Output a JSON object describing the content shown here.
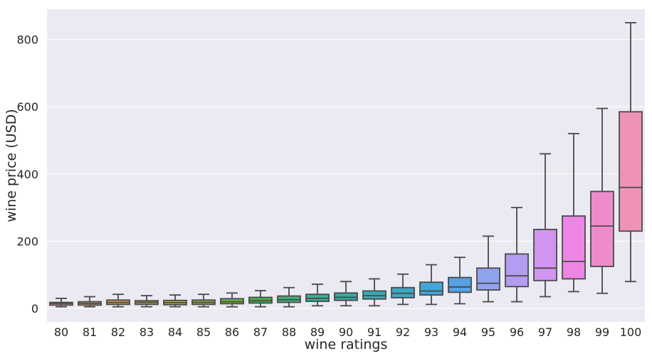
{
  "chart_data": {
    "type": "box",
    "xlabel": "wine ratings",
    "ylabel": "wine price (USD)",
    "ylim": [
      -40,
      890
    ],
    "yticks": [
      0,
      200,
      400,
      600,
      800
    ],
    "grid": true,
    "legend": "none",
    "categories": [
      "80",
      "81",
      "82",
      "83",
      "84",
      "85",
      "86",
      "87",
      "88",
      "89",
      "90",
      "91",
      "92",
      "93",
      "94",
      "95",
      "96",
      "97",
      "98",
      "99",
      "100"
    ],
    "boxes": [
      {
        "category": "80",
        "whislo": 5,
        "q1": 10,
        "med": 15,
        "q3": 18,
        "whishi": 30,
        "color": "#f08f8a"
      },
      {
        "category": "81",
        "whislo": 5,
        "q1": 10,
        "med": 15,
        "q3": 20,
        "whishi": 35,
        "color": "#e79a6f"
      },
      {
        "category": "82",
        "whislo": 5,
        "q1": 12,
        "med": 18,
        "q3": 25,
        "whishi": 42,
        "color": "#d9a34f"
      },
      {
        "category": "83",
        "whislo": 5,
        "q1": 12,
        "med": 18,
        "q3": 23,
        "whishi": 38,
        "color": "#c5a93d"
      },
      {
        "category": "84",
        "whislo": 5,
        "q1": 11,
        "med": 17,
        "q3": 24,
        "whishi": 40,
        "color": "#b2ae3c"
      },
      {
        "category": "85",
        "whislo": 5,
        "q1": 12,
        "med": 18,
        "q3": 25,
        "whishi": 42,
        "color": "#98b240"
      },
      {
        "category": "86",
        "whislo": 5,
        "q1": 14,
        "med": 20,
        "q3": 29,
        "whishi": 46,
        "color": "#6fb546"
      },
      {
        "category": "87",
        "whislo": 5,
        "q1": 16,
        "med": 23,
        "q3": 33,
        "whishi": 53,
        "color": "#49b54f"
      },
      {
        "category": "88",
        "whislo": 5,
        "q1": 18,
        "med": 26,
        "q3": 37,
        "whishi": 62,
        "color": "#3db278"
      },
      {
        "category": "89",
        "whislo": 8,
        "q1": 21,
        "med": 30,
        "q3": 42,
        "whishi": 72,
        "color": "#38af92"
      },
      {
        "category": "90",
        "whislo": 8,
        "q1": 24,
        "med": 33,
        "q3": 46,
        "whishi": 80,
        "color": "#37aba4"
      },
      {
        "category": "91",
        "whislo": 8,
        "q1": 28,
        "med": 38,
        "q3": 52,
        "whishi": 88,
        "color": "#39a9b4"
      },
      {
        "category": "92",
        "whislo": 12,
        "q1": 32,
        "med": 45,
        "q3": 62,
        "whishi": 102,
        "color": "#3ba8c4"
      },
      {
        "category": "93",
        "whislo": 12,
        "q1": 40,
        "med": 52,
        "q3": 78,
        "whishi": 130,
        "color": "#42a6d6"
      },
      {
        "category": "94",
        "whislo": 14,
        "q1": 48,
        "med": 64,
        "q3": 92,
        "whishi": 152,
        "color": "#55a3e5"
      },
      {
        "category": "95",
        "whislo": 20,
        "q1": 55,
        "med": 75,
        "q3": 120,
        "whishi": 215,
        "color": "#8fa3ee"
      },
      {
        "category": "96",
        "whislo": 20,
        "q1": 65,
        "med": 97,
        "q3": 162,
        "whishi": 300,
        "color": "#b39cf2"
      },
      {
        "category": "97",
        "whislo": 35,
        "q1": 83,
        "med": 120,
        "q3": 235,
        "whishi": 460,
        "color": "#d194ef"
      },
      {
        "category": "98",
        "whislo": 50,
        "q1": 88,
        "med": 140,
        "q3": 275,
        "whishi": 520,
        "color": "#ec85e4"
      },
      {
        "category": "99",
        "whislo": 45,
        "q1": 125,
        "med": 245,
        "q3": 348,
        "whishi": 595,
        "color": "#ee8ccb"
      },
      {
        "category": "100",
        "whislo": 80,
        "q1": 230,
        "med": 360,
        "q3": 585,
        "whishi": 850,
        "color": "#ee92b6"
      }
    ]
  }
}
